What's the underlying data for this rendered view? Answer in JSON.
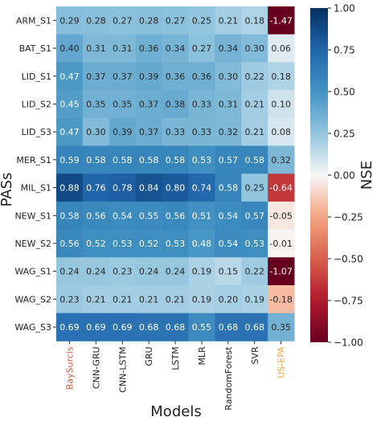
{
  "chart_data": {
    "type": "heatmap",
    "xlabel": "Models",
    "ylabel": "PASs",
    "colorbar_label": "NSE",
    "colormap": "RdBu",
    "vmin": -1.0,
    "vmax": 1.0,
    "colorbar_ticks": [
      "1.00",
      "0.75",
      "0.50",
      "0.25",
      "0.00",
      "−0.25",
      "−0.50",
      "−0.75",
      "−1.00"
    ],
    "colorbar_tick_values": [
      1.0,
      0.75,
      0.5,
      0.25,
      0.0,
      -0.25,
      -0.5,
      -0.75,
      -1.0
    ],
    "columns": [
      "BaySurcls",
      "CNN-GRU",
      "CNN-LSTM",
      "GRU",
      "LSTM",
      "MLR",
      "RandomForest",
      "SVR",
      "US-EPA"
    ],
    "column_label_colors": [
      "#d0553a",
      "#222222",
      "#222222",
      "#222222",
      "#222222",
      "#222222",
      "#222222",
      "#222222",
      "#f0a040"
    ],
    "rows": [
      "ARM_S1",
      "BAT_S1",
      "LID_S1",
      "LID_S2",
      "LID_S3",
      "MER_S1",
      "MIL_S1",
      "NEW_S1",
      "NEW_S2",
      "WAG_S1",
      "WAG_S2",
      "WAG_S3"
    ],
    "values": [
      [
        0.29,
        0.28,
        0.27,
        0.28,
        0.27,
        0.25,
        0.21,
        0.18,
        -1.47
      ],
      [
        0.4,
        0.31,
        0.31,
        0.36,
        0.34,
        0.27,
        0.34,
        0.3,
        0.06
      ],
      [
        0.47,
        0.37,
        0.37,
        0.39,
        0.36,
        0.36,
        0.3,
        0.22,
        0.18
      ],
      [
        0.45,
        0.35,
        0.35,
        0.37,
        0.38,
        0.33,
        0.31,
        0.21,
        0.1
      ],
      [
        0.47,
        0.3,
        0.39,
        0.37,
        0.33,
        0.33,
        0.32,
        0.21,
        0.08
      ],
      [
        0.59,
        0.58,
        0.58,
        0.58,
        0.58,
        0.53,
        0.57,
        0.58,
        0.32
      ],
      [
        0.88,
        0.76,
        0.78,
        0.84,
        0.8,
        0.74,
        0.58,
        0.25,
        -0.64
      ],
      [
        0.58,
        0.56,
        0.54,
        0.55,
        0.56,
        0.51,
        0.54,
        0.57,
        -0.05
      ],
      [
        0.56,
        0.52,
        0.53,
        0.52,
        0.53,
        0.48,
        0.54,
        0.53,
        -0.01
      ],
      [
        0.24,
        0.24,
        0.23,
        0.24,
        0.24,
        0.19,
        0.15,
        0.22,
        -1.07
      ],
      [
        0.23,
        0.21,
        0.21,
        0.21,
        0.21,
        0.19,
        0.2,
        0.19,
        -0.18
      ],
      [
        0.69,
        0.69,
        0.69,
        0.68,
        0.68,
        0.55,
        0.68,
        0.68,
        0.35
      ]
    ],
    "value_labels": [
      [
        "0.29",
        "0.28",
        "0.27",
        "0.28",
        "0.27",
        "0.25",
        "0.21",
        "0.18",
        "-1.47"
      ],
      [
        "0.40",
        "0.31",
        "0.31",
        "0.36",
        "0.34",
        "0.27",
        "0.34",
        "0.30",
        "0.06"
      ],
      [
        "0.47",
        "0.37",
        "0.37",
        "0.39",
        "0.36",
        "0.36",
        "0.30",
        "0.22",
        "0.18"
      ],
      [
        "0.45",
        "0.35",
        "0.35",
        "0.37",
        "0.38",
        "0.33",
        "0.31",
        "0.21",
        "0.10"
      ],
      [
        "0.47",
        "0.30",
        "0.39",
        "0.37",
        "0.33",
        "0.33",
        "0.32",
        "0.21",
        "0.08"
      ],
      [
        "0.59",
        "0.58",
        "0.58",
        "0.58",
        "0.58",
        "0.53",
        "0.57",
        "0.58",
        "0.32"
      ],
      [
        "0.88",
        "0.76",
        "0.78",
        "0.84",
        "0.80",
        "0.74",
        "0.58",
        "0.25",
        "-0.64"
      ],
      [
        "0.58",
        "0.56",
        "0.54",
        "0.55",
        "0.56",
        "0.51",
        "0.54",
        "0.57",
        "-0.05"
      ],
      [
        "0.56",
        "0.52",
        "0.53",
        "0.52",
        "0.53",
        "0.48",
        "0.54",
        "0.53",
        "-0.01"
      ],
      [
        "0.24",
        "0.24",
        "0.23",
        "0.24",
        "0.24",
        "0.19",
        "0.15",
        "0.22",
        "-1.07"
      ],
      [
        "0.23",
        "0.21",
        "0.21",
        "0.21",
        "0.21",
        "0.19",
        "0.20",
        "0.19",
        "-0.18"
      ],
      [
        "0.69",
        "0.69",
        "0.69",
        "0.68",
        "0.68",
        "0.55",
        "0.68",
        "0.68",
        "0.35"
      ]
    ]
  }
}
